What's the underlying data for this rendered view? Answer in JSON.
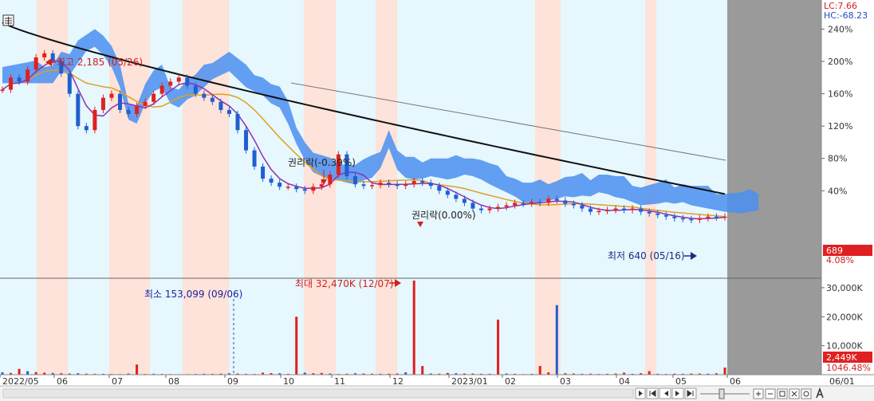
{
  "chart_data": {
    "type": "candlestick",
    "price_axis": {
      "ticks": [
        "240%",
        "200%",
        "160%",
        "120%",
        "80%",
        "40%"
      ],
      "range_pct": [
        -68.23,
        276
      ]
    },
    "volume_axis": {
      "ticks": [
        "30,000K",
        "20,000K",
        "10,000K"
      ],
      "max": 33000
    },
    "x_ticks": [
      "2022/05",
      "06",
      "07",
      "08",
      "09",
      "10",
      "11",
      "12",
      "2023/01",
      "02",
      "03",
      "04",
      "05",
      "06"
    ],
    "right_date": "06/01",
    "lc_label": "LC:7.66",
    "hc_label": "HC:-68.23",
    "current_price": "689",
    "current_pct": "4.08%",
    "current_volume": "2,449K",
    "current_volume_pct": "1046.48%",
    "annotations": {
      "high": "최고 2,185 (05/26)",
      "low": "최저 640 (05/16)",
      "rights": "권리락(-0.39%)",
      "rights2": "권리락(0.00%)",
      "vol_max": "최대 32,470K (12/07)",
      "vol_min": "최소 153,099 (09/06)"
    },
    "price_pct_series": [
      165,
      180,
      175,
      190,
      205,
      210,
      200,
      185,
      160,
      120,
      115,
      140,
      155,
      160,
      140,
      135,
      145,
      150,
      160,
      170,
      175,
      180,
      170,
      160,
      155,
      150,
      140,
      135,
      115,
      90,
      70,
      55,
      50,
      45,
      45,
      42,
      40,
      45,
      48,
      60,
      85,
      58,
      48,
      46,
      47,
      50,
      48,
      46,
      48,
      52,
      50,
      46,
      40,
      35,
      30,
      25,
      18,
      16,
      18,
      20,
      22,
      25,
      24,
      26,
      25,
      30,
      28,
      24,
      22,
      18,
      14,
      15,
      16,
      18,
      16,
      18,
      14,
      12,
      10,
      8,
      6,
      5,
      4,
      6,
      8,
      7,
      8
    ],
    "volume_series": [
      800,
      600,
      2000,
      1200,
      900,
      700,
      600,
      500,
      400,
      500,
      350,
      300,
      300,
      250,
      200,
      400,
      3500,
      250,
      300,
      260,
      200,
      153,
      180,
      250,
      300,
      280,
      350,
      500,
      400,
      300,
      250,
      700,
      550,
      500,
      300,
      20000,
      700,
      500,
      600,
      400,
      250,
      350,
      500,
      400,
      350,
      300,
      350,
      400,
      800,
      32470,
      3000,
      400,
      350,
      600,
      500,
      400,
      400,
      300,
      300,
      19000,
      400,
      300,
      200,
      300,
      3000,
      800,
      24000,
      500,
      400,
      300,
      350,
      250,
      300,
      400,
      700,
      300,
      500,
      1200,
      300,
      250,
      350,
      300,
      400,
      400,
      350,
      500,
      2449
    ]
  }
}
